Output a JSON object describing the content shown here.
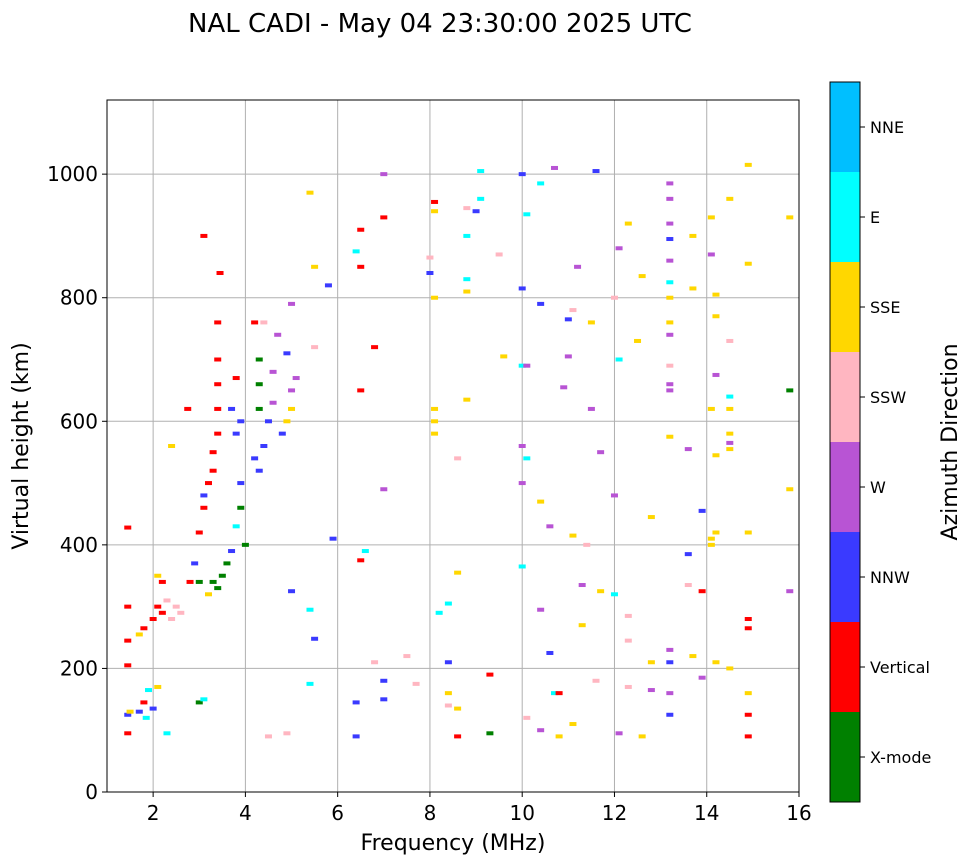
{
  "chart_data": {
    "type": "scatter",
    "title": "NAL CADI - May 04 23:30:00 2025 UTC",
    "xlabel": "Frequency (MHz)",
    "ylabel": "Virtual height (km)",
    "xlim": [
      1,
      16
    ],
    "ylim": [
      0,
      1120
    ],
    "xticks": [
      2,
      4,
      6,
      8,
      10,
      12,
      14,
      16
    ],
    "yticks": [
      0,
      200,
      400,
      600,
      800,
      1000
    ],
    "grid": true,
    "colorbar": {
      "label": "Azimuth Direction",
      "categories": [
        {
          "name": "X-mode",
          "color": "#008000"
        },
        {
          "name": "Vertical",
          "color": "#ff0000"
        },
        {
          "name": "NNW",
          "color": "#3a3aff"
        },
        {
          "name": "W",
          "color": "#b854d4"
        },
        {
          "name": "SSW",
          "color": "#ffb6c1"
        },
        {
          "name": "SSE",
          "color": "#ffd700"
        },
        {
          "name": "E",
          "color": "#00ffff"
        },
        {
          "name": "NNE",
          "color": "#00bfff"
        }
      ]
    },
    "points_format": [
      "frequency_mhz",
      "virtual_height_km",
      "category_index"
    ],
    "points": [
      [
        1.45,
        428,
        1
      ],
      [
        1.45,
        300,
        1
      ],
      [
        1.45,
        245,
        1
      ],
      [
        1.45,
        205,
        1
      ],
      [
        1.45,
        125,
        2
      ],
      [
        1.45,
        95,
        1
      ],
      [
        1.5,
        130,
        5
      ],
      [
        1.7,
        130,
        2
      ],
      [
        1.8,
        145,
        1
      ],
      [
        1.85,
        120,
        6
      ],
      [
        1.9,
        165,
        6
      ],
      [
        2.0,
        135,
        2
      ],
      [
        2.1,
        170,
        5
      ],
      [
        2.3,
        95,
        6
      ],
      [
        1.8,
        265,
        1
      ],
      [
        1.7,
        255,
        5
      ],
      [
        2.0,
        280,
        1
      ],
      [
        2.1,
        300,
        1
      ],
      [
        2.2,
        290,
        1
      ],
      [
        2.3,
        310,
        4
      ],
      [
        2.4,
        280,
        4
      ],
      [
        2.5,
        300,
        4
      ],
      [
        2.6,
        290,
        4
      ],
      [
        2.2,
        340,
        1
      ],
      [
        2.1,
        350,
        5
      ],
      [
        2.4,
        560,
        5
      ],
      [
        2.75,
        620,
        1
      ],
      [
        2.8,
        340,
        1
      ],
      [
        2.9,
        370,
        2
      ],
      [
        3.0,
        145,
        0
      ],
      [
        3.1,
        150,
        6
      ],
      [
        3.0,
        420,
        1
      ],
      [
        3.1,
        460,
        1
      ],
      [
        3.1,
        480,
        2
      ],
      [
        3.2,
        500,
        1
      ],
      [
        3.3,
        520,
        1
      ],
      [
        3.3,
        550,
        1
      ],
      [
        3.4,
        580,
        1
      ],
      [
        3.4,
        620,
        1
      ],
      [
        3.4,
        660,
        1
      ],
      [
        3.4,
        700,
        1
      ],
      [
        3.4,
        760,
        1
      ],
      [
        3.45,
        840,
        1
      ],
      [
        3.1,
        900,
        1
      ],
      [
        3.0,
        340,
        0
      ],
      [
        3.2,
        320,
        5
      ],
      [
        3.3,
        340,
        0
      ],
      [
        3.4,
        330,
        0
      ],
      [
        3.5,
        350,
        0
      ],
      [
        3.6,
        370,
        0
      ],
      [
        3.7,
        390,
        2
      ],
      [
        3.8,
        430,
        6
      ],
      [
        3.9,
        460,
        0
      ],
      [
        3.9,
        500,
        2
      ],
      [
        3.8,
        580,
        2
      ],
      [
        3.7,
        620,
        2
      ],
      [
        3.9,
        600,
        2
      ],
      [
        3.8,
        670,
        1
      ],
      [
        4.2,
        760,
        1
      ],
      [
        4.3,
        700,
        0
      ],
      [
        4.3,
        660,
        0
      ],
      [
        4.3,
        620,
        0
      ],
      [
        4.2,
        540,
        2
      ],
      [
        4.3,
        520,
        2
      ],
      [
        4.4,
        560,
        2
      ],
      [
        4.5,
        600,
        2
      ],
      [
        4.6,
        630,
        3
      ],
      [
        4.6,
        680,
        3
      ],
      [
        4.7,
        740,
        3
      ],
      [
        4.4,
        760,
        4
      ],
      [
        4.9,
        600,
        5
      ],
      [
        5.0,
        620,
        5
      ],
      [
        5.0,
        650,
        3
      ],
      [
        5.1,
        670,
        3
      ],
      [
        4.8,
        580,
        2
      ],
      [
        4.9,
        710,
        2
      ],
      [
        5.0,
        790,
        3
      ],
      [
        4.0,
        400,
        0
      ],
      [
        4.5,
        90,
        4
      ],
      [
        4.9,
        95,
        4
      ],
      [
        5.0,
        325,
        2
      ],
      [
        5.4,
        295,
        6
      ],
      [
        5.5,
        248,
        2
      ],
      [
        5.4,
        175,
        6
      ],
      [
        5.5,
        720,
        4
      ],
      [
        5.4,
        970,
        5
      ],
      [
        5.5,
        850,
        5
      ],
      [
        5.8,
        820,
        2
      ],
      [
        5.9,
        410,
        2
      ],
      [
        6.4,
        90,
        2
      ],
      [
        6.4,
        145,
        2
      ],
      [
        6.5,
        375,
        1
      ],
      [
        6.6,
        390,
        6
      ],
      [
        6.5,
        650,
        1
      ],
      [
        6.5,
        850,
        1
      ],
      [
        6.5,
        910,
        1
      ],
      [
        6.4,
        875,
        6
      ],
      [
        6.8,
        720,
        1
      ],
      [
        6.8,
        210,
        4
      ],
      [
        7.0,
        490,
        3
      ],
      [
        7.0,
        1000,
        3
      ],
      [
        7.0,
        930,
        1
      ],
      [
        7.0,
        180,
        2
      ],
      [
        7.0,
        150,
        2
      ],
      [
        7.5,
        220,
        4
      ],
      [
        7.7,
        175,
        4
      ],
      [
        8.0,
        865,
        4
      ],
      [
        8.1,
        600,
        5
      ],
      [
        8.1,
        580,
        5
      ],
      [
        8.1,
        620,
        5
      ],
      [
        8.1,
        800,
        5
      ],
      [
        8.1,
        940,
        5
      ],
      [
        8.1,
        955,
        1
      ],
      [
        8.0,
        840,
        2
      ],
      [
        8.2,
        290,
        6
      ],
      [
        8.4,
        305,
        6
      ],
      [
        8.4,
        210,
        2
      ],
      [
        8.4,
        160,
        5
      ],
      [
        8.4,
        140,
        4
      ],
      [
        8.6,
        90,
        1
      ],
      [
        8.6,
        135,
        5
      ],
      [
        8.6,
        355,
        5
      ],
      [
        8.6,
        540,
        4
      ],
      [
        8.8,
        635,
        5
      ],
      [
        8.8,
        810,
        5
      ],
      [
        8.8,
        830,
        6
      ],
      [
        8.8,
        900,
        6
      ],
      [
        8.8,
        945,
        4
      ],
      [
        9.0,
        940,
        2
      ],
      [
        9.1,
        1005,
        6
      ],
      [
        9.1,
        960,
        6
      ],
      [
        9.3,
        190,
        1
      ],
      [
        9.3,
        95,
        0
      ],
      [
        9.5,
        870,
        4
      ],
      [
        9.6,
        705,
        5
      ],
      [
        10.0,
        1000,
        2
      ],
      [
        10.0,
        815,
        2
      ],
      [
        10.0,
        690,
        6
      ],
      [
        10.0,
        560,
        3
      ],
      [
        10.0,
        500,
        3
      ],
      [
        10.0,
        365,
        6
      ],
      [
        10.1,
        120,
        4
      ],
      [
        10.1,
        690,
        3
      ],
      [
        10.1,
        540,
        6
      ],
      [
        10.1,
        935,
        6
      ],
      [
        10.4,
        985,
        6
      ],
      [
        10.4,
        790,
        2
      ],
      [
        10.4,
        470,
        5
      ],
      [
        10.4,
        295,
        3
      ],
      [
        10.4,
        100,
        3
      ],
      [
        10.6,
        430,
        3
      ],
      [
        10.6,
        225,
        2
      ],
      [
        10.7,
        160,
        6
      ],
      [
        10.8,
        160,
        1
      ],
      [
        10.8,
        90,
        5
      ],
      [
        10.7,
        1010,
        3
      ],
      [
        10.9,
        655,
        3
      ],
      [
        11.0,
        705,
        3
      ],
      [
        11.0,
        765,
        2
      ],
      [
        11.1,
        415,
        5
      ],
      [
        11.1,
        110,
        5
      ],
      [
        11.1,
        780,
        4
      ],
      [
        11.2,
        850,
        3
      ],
      [
        11.3,
        335,
        3
      ],
      [
        11.3,
        270,
        5
      ],
      [
        11.4,
        400,
        4
      ],
      [
        11.5,
        620,
        3
      ],
      [
        11.5,
        760,
        5
      ],
      [
        11.6,
        1005,
        2
      ],
      [
        11.6,
        180,
        4
      ],
      [
        11.7,
        325,
        5
      ],
      [
        11.7,
        550,
        3
      ],
      [
        12.0,
        320,
        6
      ],
      [
        12.0,
        480,
        3
      ],
      [
        12.0,
        800,
        4
      ],
      [
        12.1,
        700,
        6
      ],
      [
        12.1,
        880,
        3
      ],
      [
        12.1,
        95,
        3
      ],
      [
        12.3,
        170,
        4
      ],
      [
        12.3,
        245,
        4
      ],
      [
        12.3,
        285,
        4
      ],
      [
        12.3,
        920,
        5
      ],
      [
        12.5,
        730,
        5
      ],
      [
        12.6,
        90,
        5
      ],
      [
        12.6,
        835,
        5
      ],
      [
        12.8,
        210,
        5
      ],
      [
        12.8,
        445,
        5
      ],
      [
        12.8,
        165,
        3
      ],
      [
        13.2,
        985,
        3
      ],
      [
        13.2,
        960,
        3
      ],
      [
        13.2,
        920,
        3
      ],
      [
        13.2,
        895,
        2
      ],
      [
        13.2,
        860,
        3
      ],
      [
        13.2,
        825,
        6
      ],
      [
        13.2,
        800,
        5
      ],
      [
        13.2,
        760,
        5
      ],
      [
        13.2,
        740,
        3
      ],
      [
        13.2,
        690,
        4
      ],
      [
        13.2,
        660,
        3
      ],
      [
        13.2,
        650,
        3
      ],
      [
        13.2,
        575,
        5
      ],
      [
        13.2,
        230,
        3
      ],
      [
        13.2,
        210,
        2
      ],
      [
        13.2,
        160,
        3
      ],
      [
        13.2,
        125,
        2
      ],
      [
        13.6,
        385,
        2
      ],
      [
        13.6,
        335,
        4
      ],
      [
        13.6,
        555,
        3
      ],
      [
        13.7,
        900,
        5
      ],
      [
        13.7,
        815,
        5
      ],
      [
        13.7,
        220,
        5
      ],
      [
        13.9,
        325,
        1
      ],
      [
        13.9,
        455,
        2
      ],
      [
        13.9,
        185,
        3
      ],
      [
        14.1,
        410,
        5
      ],
      [
        14.1,
        400,
        5
      ],
      [
        14.1,
        620,
        5
      ],
      [
        14.1,
        870,
        3
      ],
      [
        14.1,
        930,
        5
      ],
      [
        14.2,
        675,
        3
      ],
      [
        14.2,
        545,
        5
      ],
      [
        14.2,
        210,
        5
      ],
      [
        14.2,
        420,
        5
      ],
      [
        14.2,
        805,
        5
      ],
      [
        14.2,
        770,
        5
      ],
      [
        14.5,
        960,
        5
      ],
      [
        14.5,
        730,
        4
      ],
      [
        14.5,
        620,
        5
      ],
      [
        14.5,
        580,
        5
      ],
      [
        14.5,
        565,
        3
      ],
      [
        14.5,
        555,
        5
      ],
      [
        14.5,
        640,
        6
      ],
      [
        14.5,
        200,
        5
      ],
      [
        14.9,
        1015,
        5
      ],
      [
        14.9,
        855,
        5
      ],
      [
        14.9,
        420,
        5
      ],
      [
        14.9,
        280,
        1
      ],
      [
        14.9,
        265,
        1
      ],
      [
        14.9,
        160,
        5
      ],
      [
        14.9,
        125,
        1
      ],
      [
        14.9,
        90,
        1
      ],
      [
        15.8,
        650,
        0
      ],
      [
        15.8,
        930,
        5
      ],
      [
        15.8,
        490,
        5
      ],
      [
        15.8,
        325,
        3
      ]
    ]
  }
}
